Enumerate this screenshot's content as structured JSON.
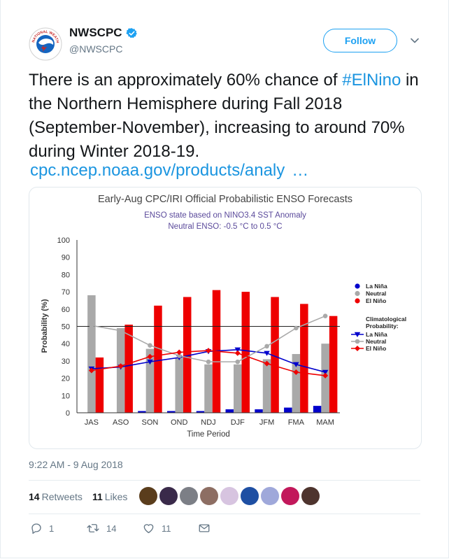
{
  "account": {
    "name": "NWSCPC",
    "handle": "@NWSCPC",
    "logo_text": "NATIONAL WEATHER SERVICE",
    "follow_label": "Follow"
  },
  "tweet": {
    "text_before": "There is an approximately 60% chance of ",
    "hashtag": "#ElNino",
    "text_after": " in the Northern Hemisphere during Fall 2018 (September-November), increasing to around 70% during Winter 2018-19.",
    "link_text": "cpc.ncep.noaa.gov/products/analy",
    "link_ellipsis": "…"
  },
  "timestamp": "9:22 AM - 9 Aug 2018",
  "stats": {
    "retweets_count": "14",
    "retweets_label": "Retweets",
    "likes_count": "11",
    "likes_label": "Likes"
  },
  "actions": {
    "replies": "1",
    "retweets": "14",
    "likes": "11"
  },
  "likers": [
    {
      "icon": "liker-avatar-1",
      "color": "#5a3d1c"
    },
    {
      "icon": "liker-avatar-2",
      "color": "#3a2a4a"
    },
    {
      "icon": "liker-avatar-3",
      "color": "#7c7f86"
    },
    {
      "icon": "liker-avatar-4",
      "color": "#8d6e63"
    },
    {
      "icon": "liker-avatar-5",
      "color": "#d7c4e0"
    },
    {
      "icon": "liker-avatar-6",
      "color": "#1e4fa3"
    },
    {
      "icon": "liker-avatar-7",
      "color": "#9fa8da"
    },
    {
      "icon": "liker-avatar-8",
      "color": "#c2185b"
    },
    {
      "icon": "liker-avatar-9",
      "color": "#4e342e"
    }
  ],
  "colors": {
    "link": "#1b95e0",
    "follow": "#1da1f2",
    "verified": "#1da1f2",
    "la_nina": "#0000cc",
    "neutral": "#a9a9a9",
    "el_nino": "#ee0000"
  },
  "chart_data": {
    "type": "bar",
    "title": "Early-Aug CPC/IRI Official Probabilistic ENSO Forecasts",
    "subtitle_1": "ENSO state based on NINO3.4 SST Anomaly",
    "subtitle_2": "Neutral ENSO: -0.5 °C to 0.5 °C",
    "xlabel": "Time Period",
    "ylabel": "Probability (%)",
    "ylim": [
      0,
      100
    ],
    "yticks": [
      0,
      10,
      20,
      30,
      40,
      50,
      60,
      70,
      80,
      90,
      100
    ],
    "grid": false,
    "reference_line": 50,
    "categories": [
      "JAS",
      "ASO",
      "SON",
      "OND",
      "NDJ",
      "DJF",
      "JFM",
      "FMA",
      "MAM"
    ],
    "series": [
      {
        "name": "La Niña",
        "color": "#0000cc",
        "values": [
          0,
          0,
          1,
          1,
          1,
          2,
          2,
          3,
          4
        ]
      },
      {
        "name": "Neutral",
        "color": "#a9a9a9",
        "values": [
          68,
          49,
          37,
          32,
          28,
          28,
          31,
          34,
          40
        ]
      },
      {
        "name": "El Niño",
        "color": "#ee0000",
        "values": [
          32,
          51,
          62,
          67,
          71,
          70,
          67,
          63,
          56
        ]
      }
    ],
    "climatology": [
      {
        "name": "La Niña",
        "color": "#0000cc",
        "marker": "triangle-down",
        "values": [
          25.5,
          26.5,
          29.5,
          32,
          35.5,
          36.5,
          34.5,
          28,
          23.5
        ]
      },
      {
        "name": "Neutral",
        "color": "#a9a9a9",
        "marker": "circle",
        "values": [
          50.5,
          47.5,
          39,
          33,
          29.5,
          29.5,
          38.5,
          49,
          56
        ]
      },
      {
        "name": "El Niño",
        "color": "#ee0000",
        "marker": "diamond",
        "values": [
          24.5,
          27,
          32.5,
          35,
          36,
          34.5,
          28.5,
          23.5,
          21.5
        ]
      }
    ],
    "legend_position": "right",
    "legend_climatology_title_1": "Climatological",
    "legend_climatology_title_2": "Probability:"
  }
}
